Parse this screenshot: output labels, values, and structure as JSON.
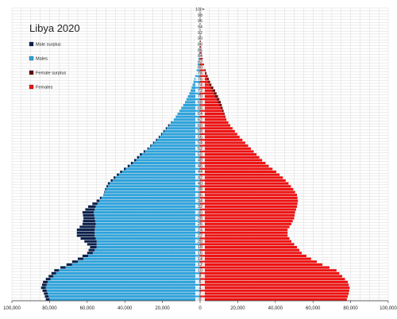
{
  "chart_data": {
    "type": "bar",
    "orientation": "horizontal",
    "title": "Libya 2020",
    "xlim": [
      -100000,
      100000
    ],
    "x_tick_values": [
      -100000,
      -80000,
      -60000,
      -40000,
      -20000,
      0,
      20000,
      40000,
      60000,
      80000,
      100000
    ],
    "x_tick_labels": [
      "100,000",
      "80,000",
      "60,000",
      "40,000",
      "20,000",
      "0",
      "20,000",
      "40,000",
      "60,000",
      "80,000",
      "100,000"
    ],
    "y_tick_labels": [
      "0",
      "2",
      "4",
      "6",
      "8",
      "10",
      "12",
      "14",
      "16",
      "18",
      "20",
      "22",
      "24",
      "26",
      "28",
      "30",
      "32",
      "34",
      "36",
      "38",
      "40",
      "42",
      "44",
      "46",
      "48",
      "50",
      "52",
      "54",
      "56",
      "58",
      "60",
      "62",
      "64",
      "66",
      "68",
      "70",
      "72",
      "74",
      "76",
      "78",
      "80",
      "82",
      "84",
      "86",
      "88",
      "90",
      "92",
      "94",
      "96",
      "98",
      "100+"
    ],
    "grid": true,
    "legend_position": "top-left",
    "legend": [
      {
        "name": "Male surplus",
        "color": "#0a1f4a"
      },
      {
        "name": "Males",
        "color": "#2ea3dc"
      },
      {
        "name": "Female surplus",
        "color": "#6a0000"
      },
      {
        "name": "Females",
        "color": "#ee1111"
      }
    ],
    "anchor_ages": [
      0,
      2,
      4,
      6,
      8,
      10,
      12,
      14,
      16,
      18,
      20,
      22,
      24,
      26,
      28,
      30,
      32,
      34,
      36,
      38,
      40,
      42,
      44,
      46,
      48,
      50,
      52,
      54,
      56,
      58,
      60,
      62,
      64,
      66,
      68,
      70,
      72,
      74,
      76,
      78,
      80,
      82,
      84,
      86,
      88,
      90,
      92,
      94,
      96,
      98,
      100
    ],
    "males": [
      80000,
      81000,
      82000,
      81000,
      78000,
      75000,
      68000,
      62000,
      57000,
      55000,
      55000,
      56000,
      56000,
      55500,
      56000,
      56500,
      55500,
      53500,
      51500,
      50000,
      48000,
      45000,
      41500,
      37500,
      34000,
      31000,
      27500,
      24500,
      21500,
      19000,
      16500,
      14000,
      12000,
      10000,
      8000,
      6500,
      5000,
      4000,
      3000,
      2200,
      1600,
      1100,
      700,
      450,
      280,
      150,
      80,
      40,
      20,
      10,
      5
    ],
    "females": [
      78000,
      79000,
      79500,
      78500,
      75500,
      72500,
      65000,
      59000,
      54000,
      51500,
      48500,
      46500,
      46500,
      48500,
      50000,
      50500,
      51500,
      52000,
      51500,
      49500,
      47000,
      44000,
      40500,
      36500,
      33000,
      30000,
      27000,
      24000,
      21000,
      18500,
      16000,
      14000,
      12500,
      11000,
      9500,
      8000,
      6500,
      5000,
      3800,
      2800,
      2000,
      1400,
      900,
      600,
      380,
      200,
      110,
      55,
      25,
      12,
      6
    ],
    "male_surplus": [
      2000,
      2000,
      2500,
      2500,
      2500,
      2500,
      3000,
      3000,
      3000,
      3500,
      6500,
      9500,
      9500,
      7000,
      6000,
      6000,
      4000,
      1500,
      0,
      500,
      1000,
      1000,
      1000,
      1000,
      1000,
      1000,
      500,
      500,
      500,
      500,
      500,
      0,
      0,
      0,
      0,
      0,
      0,
      0,
      0,
      0,
      0,
      0,
      0,
      0,
      0,
      0,
      0,
      0,
      0,
      0,
      0
    ],
    "female_surplus": [
      0,
      0,
      0,
      0,
      0,
      0,
      0,
      0,
      0,
      0,
      0,
      0,
      0,
      0,
      0,
      0,
      0,
      0,
      0,
      0,
      0,
      0,
      0,
      0,
      0,
      0,
      0,
      0,
      0,
      0,
      0,
      0,
      500,
      1000,
      1500,
      1500,
      1500,
      1000,
      800,
      600,
      400,
      300,
      200,
      150,
      100,
      50,
      30,
      15,
      5,
      2,
      1
    ]
  }
}
